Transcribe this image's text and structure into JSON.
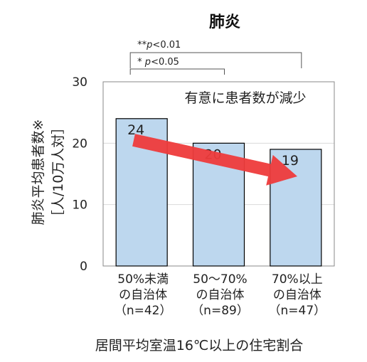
{
  "chart_data": {
    "type": "bar",
    "title": "肺炎",
    "categories": [
      [
        "50%未満",
        "の自治体",
        "（n=42）"
      ],
      [
        "50～70%",
        "の自治体",
        "（n=89）"
      ],
      [
        "70%以上",
        "の自治体",
        "（n=47）"
      ]
    ],
    "values": [
      24,
      20,
      19
    ],
    "value_labels": [
      "24",
      "20",
      "19"
    ],
    "ylabel": [
      "肺炎平均患者数※",
      "［人/10万人対］"
    ],
    "xlabel": "居間平均室温16℃以上の住宅割合",
    "ylim": [
      0,
      30
    ],
    "yticks": [
      "0",
      "10",
      "20",
      "30"
    ],
    "grid": true,
    "annotation": "有意に患者数が減少",
    "significance": [
      {
        "prefix": "* ",
        "p": "p",
        "rest": "<0.05",
        "from": 0,
        "to": 1
      },
      {
        "prefix": "**",
        "p": "p",
        "rest": "<0.01",
        "from": 0,
        "to": 2
      }
    ],
    "colors": {
      "bar_fill": "#bdd7ee",
      "bar_stroke": "#000000",
      "arrow": "#ee3b3b",
      "grid": "#d9d9d9"
    }
  }
}
